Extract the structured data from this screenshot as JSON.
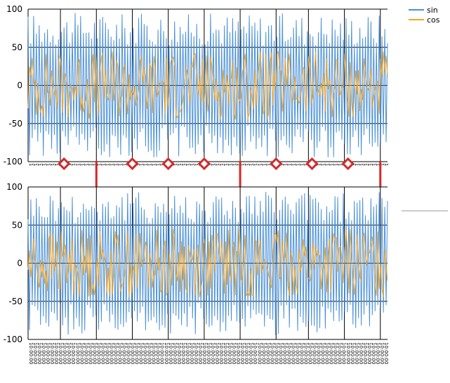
{
  "colors": {
    "sin": "#4a90d9",
    "cos": "#f5a623",
    "marker": "#d62728",
    "grid": "#000000",
    "splitter": "#cccccc"
  },
  "legend": {
    "placement": "top-right",
    "items": [
      {
        "label": "sin",
        "color": "#4a90d9"
      },
      {
        "label": "cos",
        "color": "#f5a623"
      }
    ]
  },
  "chart_data": [
    {
      "type": "line",
      "x_tick_labels_shown": true,
      "ylim": [
        -100,
        100
      ],
      "yticks": [
        100,
        50,
        0,
        -50,
        -100
      ],
      "ytick_labels": [
        "100",
        "50",
        "0",
        "-50",
        "-100"
      ],
      "grid": {
        "horizontal": true,
        "vertical": true
      },
      "series": [
        {
          "name": "sin",
          "color": "#4a90d9",
          "amplitude_approx": 95
        },
        {
          "name": "cos",
          "color": "#f5a623",
          "amplitude_approx": 45
        }
      ],
      "annotations": {
        "diamond_markers_at_fraction": [
          0.1,
          0.29,
          0.39,
          0.49,
          0.69,
          0.79,
          0.89
        ],
        "bar_markers_at_fraction": [
          0.19,
          0.59,
          0.98
        ]
      }
    },
    {
      "type": "line",
      "ylim": [
        -100,
        100
      ],
      "yticks": [
        100,
        50,
        0,
        -50,
        -100
      ],
      "ytick_labels": [
        "100",
        "50",
        "0",
        "-50",
        "-100"
      ],
      "grid": {
        "horizontal": true,
        "vertical": true
      },
      "series": [
        {
          "name": "sin",
          "color": "#4a90d9",
          "amplitude_approx": 95
        },
        {
          "name": "cos",
          "color": "#f5a623",
          "amplitude_approx": 45
        }
      ]
    }
  ]
}
